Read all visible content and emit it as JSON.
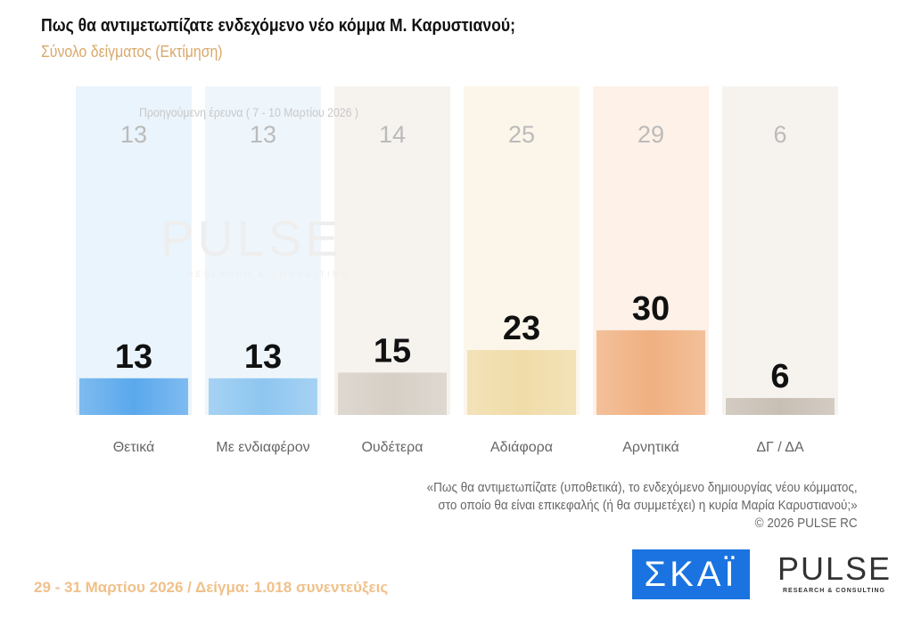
{
  "header": {
    "title": "Πως θα αντιμετωπίζατε ενδεχόμενο νέο κόμμα Μ. Καρυστιανού;",
    "subtitle": "Σύνολο δείγματος  (Εκτίμηση)"
  },
  "chart_data": {
    "type": "bar",
    "title": "Πως θα αντιμετωπίζατε ενδεχόμενο νέο κόμμα Μ. Καρυστιανού;",
    "categories": [
      "Θετικά",
      "Με ενδιαφέρον",
      "Ουδέτερα",
      "Αδιάφορα",
      "Αρνητικά",
      "ΔΓ / ΔΑ"
    ],
    "series": [
      {
        "name": "29 - 31 Μαρτίου 2026",
        "values": [
          13,
          13,
          15,
          23,
          30,
          6
        ]
      },
      {
        "name": "Προηγούμενη έρευνα ( 7 - 10 Μαρτίου 2026 )",
        "values": [
          13,
          13,
          14,
          25,
          29,
          6
        ]
      }
    ],
    "colors": [
      "#5aa8ec",
      "#8ec6f0",
      "#d6cfc6",
      "#f0dca8",
      "#f0b080",
      "#c8bfb4"
    ],
    "bg_colors": [
      "#eaf4fc",
      "#eef6fc",
      "#f6f3ef",
      "#fcf6ea",
      "#fdf1e8",
      "#f6f3ef"
    ],
    "ylim": [
      0,
      35
    ]
  },
  "prev_label": "Προηγούμενη έρευνα ( 7 - 10 Μαρτίου 2026 )",
  "watermark": {
    "brand": "PULSE",
    "tag": "RESEARCH & CONSULTING"
  },
  "note": {
    "line1": "«Πως θα αντιμετωπίζατε (υποθετικά), το ενδεχόμενο δημιουργίας νέου κόμματος,",
    "line2": "στο οποίο θα είναι επικεφαλής (ή θα συμμετέχει) η κυρία Μαρία Καρυστιανού;»",
    "copyright": "©  2026  PULSE RC"
  },
  "footer": "29 - 31  Μαρτίου 2026  /  Δείγμα:  1.018 συνεντεύξεις",
  "logos": {
    "skai": "ΣΚΑΪ",
    "pulse": "PULSE",
    "pulse_tag": "RESEARCH & CONSULTING"
  }
}
